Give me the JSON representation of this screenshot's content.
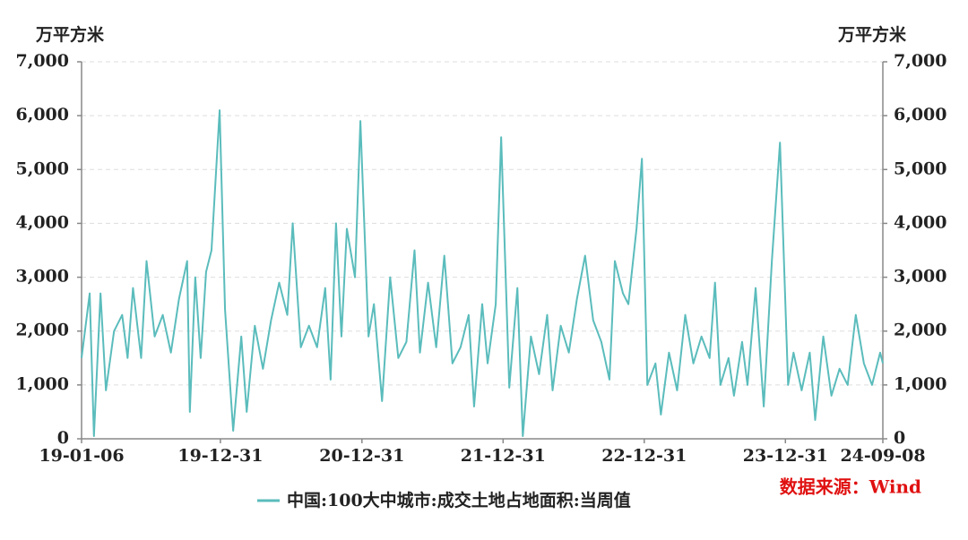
{
  "chart_data": {
    "type": "line",
    "y_label": "万平方米",
    "y2_label": "万平方米",
    "source": "数据来源：Wind",
    "grid": true,
    "xlim": [
      "19-01-06",
      "24-09-08"
    ],
    "xticks": [
      "19-01-06",
      "19-12-31",
      "20-12-31",
      "21-12-31",
      "22-12-31",
      "23-12-31",
      "24-09-08"
    ],
    "ylim": [
      0,
      7000
    ],
    "yticks": [
      0,
      {
        "value": 1000,
        "label": "1,000"
      },
      {
        "value": 2000,
        "label": "2,000"
      },
      {
        "value": 3000,
        "label": "3,000"
      },
      {
        "value": 4000,
        "label": "4,000"
      },
      {
        "value": 5000,
        "label": "5,000"
      },
      {
        "value": 6000,
        "label": "6,000"
      },
      {
        "value": 7000,
        "label": "7,000"
      }
    ],
    "y2lim": [
      0,
      7000
    ],
    "y2ticks": [
      0,
      {
        "value": 1000,
        "label": "1,000"
      },
      {
        "value": 2000,
        "label": "2,000"
      },
      {
        "value": 3000,
        "label": "3,000"
      },
      {
        "value": 4000,
        "label": "4,000"
      },
      {
        "value": 5000,
        "label": "5,000"
      },
      {
        "value": 6000,
        "label": "6,000"
      },
      {
        "value": 7000,
        "label": "7,000"
      }
    ],
    "x": [
      "19-01-06",
      "19-01-27",
      "19-02-07",
      "19-02-24",
      "19-03-10",
      "19-03-31",
      "19-04-21",
      "19-05-05",
      "19-05-19",
      "19-06-09",
      "19-06-23",
      "19-07-14",
      "19-08-04",
      "19-08-25",
      "19-09-15",
      "19-10-06",
      "19-10-13",
      "19-10-27",
      "19-11-10",
      "19-11-24",
      "19-12-08",
      "19-12-29",
      "20-01-12",
      "20-02-02",
      "20-02-23",
      "20-03-08",
      "20-03-29",
      "20-04-19",
      "20-05-10",
      "20-05-31",
      "20-06-21",
      "20-07-05",
      "20-07-26",
      "20-08-16",
      "20-09-06",
      "20-09-27",
      "20-10-11",
      "20-10-25",
      "20-11-08",
      "20-11-22",
      "20-12-13",
      "20-12-27",
      "21-01-17",
      "21-01-31",
      "21-02-21",
      "21-03-14",
      "21-04-04",
      "21-04-25",
      "21-05-16",
      "21-05-30",
      "21-06-20",
      "21-07-11",
      "21-08-01",
      "21-08-22",
      "21-09-12",
      "21-10-03",
      "21-10-17",
      "21-11-07",
      "21-11-21",
      "21-12-12",
      "21-12-26",
      "22-01-16",
      "22-02-06",
      "22-02-20",
      "22-03-13",
      "22-04-03",
      "22-04-24",
      "22-05-08",
      "22-05-29",
      "22-06-19",
      "22-07-10",
      "22-07-31",
      "22-08-21",
      "22-09-11",
      "22-10-02",
      "22-10-16",
      "22-11-06",
      "22-11-20",
      "22-12-11",
      "22-12-25",
      "23-01-08",
      "23-01-29",
      "23-02-12",
      "23-03-05",
      "23-03-26",
      "23-04-16",
      "23-05-07",
      "23-05-28",
      "23-06-18",
      "23-07-02",
      "23-07-16",
      "23-08-06",
      "23-08-20",
      "23-09-10",
      "23-09-24",
      "23-10-15",
      "23-11-05",
      "23-11-26",
      "23-12-17",
      "24-01-07",
      "24-01-21",
      "24-02-11",
      "24-03-03",
      "24-03-17",
      "24-04-07",
      "24-04-28",
      "24-05-19",
      "24-06-09",
      "24-06-30",
      "24-07-21",
      "24-08-11",
      "24-09-01",
      "24-09-08"
    ],
    "series": [
      {
        "name": "中国:100大中城市:成交土地占地面积:当周值",
        "color": "#5bbcbc",
        "values": [
          1500,
          2700,
          50,
          2700,
          900,
          2000,
          2300,
          1500,
          2800,
          1500,
          3300,
          1900,
          2300,
          1600,
          2600,
          3300,
          500,
          3000,
          1500,
          3100,
          3500,
          6100,
          2400,
          150,
          1900,
          500,
          2100,
          1300,
          2200,
          2900,
          2300,
          4000,
          1700,
          2100,
          1700,
          2800,
          1100,
          4000,
          1900,
          3900,
          3000,
          5900,
          1900,
          2500,
          700,
          3000,
          1500,
          1800,
          3500,
          1600,
          2900,
          1700,
          3400,
          1400,
          1700,
          2300,
          600,
          2500,
          1400,
          2500,
          5600,
          950,
          2800,
          50,
          1900,
          1200,
          2300,
          900,
          2100,
          1600,
          2600,
          3400,
          2200,
          1800,
          1100,
          3300,
          2700,
          2500,
          3900,
          5200,
          1000,
          1400,
          450,
          1600,
          900,
          2300,
          1400,
          1900,
          1500,
          2900,
          1000,
          1500,
          800,
          1800,
          1000,
          2800,
          600,
          3300,
          5500,
          1000,
          1600,
          900,
          1600,
          350,
          1900,
          800,
          1300,
          1000,
          2300,
          1400,
          1000,
          1600,
          1400
        ]
      }
    ]
  }
}
